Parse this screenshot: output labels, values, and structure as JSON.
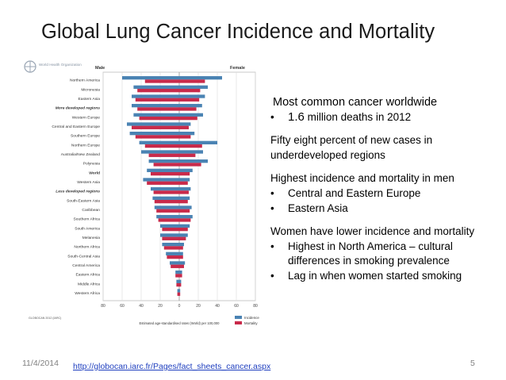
{
  "slide": {
    "title": "Global Lung Cancer Incidence and Mortality",
    "date": "11/4/2014",
    "link": "http://globocan.iarc.fr/Pages/fact_sheets_cancer.aspx",
    "page": "5"
  },
  "panel": {
    "heading": "Most common cancer worldwide",
    "b1_num": "1.6",
    "b1_rest": " million deaths in 2012",
    "p2": "Fifty eight percent of new cases in underdeveloped regions",
    "p3_head": "Highest incidence and mortality in men",
    "p3_b1": "Central and Eastern Europe",
    "p3_b2": "Eastern Asia",
    "p4_head": "Women have lower incidence and mortality",
    "p4_b1": "Highest in North America – cultural differences in smoking prevalence",
    "p4_b2": "Lag in when women started smoking",
    "bullet": "•"
  },
  "colors": {
    "incidence": "#4a83b3",
    "mortality": "#c92a4a",
    "title": "#1a1a1a"
  },
  "chart_data": {
    "type": "bar",
    "orientation": "horizontal-butterfly",
    "logo_text": "World Health Organization",
    "left_label": "Male",
    "right_label": "Female",
    "xlabel": "Estimated age-standardised rates (World) per 100,000",
    "credit": "GLOBOCAN 2012 (IARC)",
    "xlim": [
      -80,
      80
    ],
    "xticks": [
      -80,
      -60,
      -40,
      -20,
      0,
      20,
      40,
      60,
      80
    ],
    "xtick_labels": [
      "80",
      "60",
      "40",
      "20",
      "0",
      "20",
      "40",
      "60",
      "80"
    ],
    "legend": [
      "Incidence",
      "Mortality"
    ],
    "legend_position": "bottom-right",
    "categories": [
      "Northern America",
      "Micronesia",
      "Eastern Asia",
      "More developed regions",
      "Western Europe",
      "Central and Eastern Europe",
      "Southern Europe",
      "Northern Europe",
      "Australia/New Zealand",
      "Polynesia",
      "World",
      "Western Asia",
      "Less developed regions",
      "South-Eastern Asia",
      "Caribbean",
      "Southern Africa",
      "South America",
      "Melanesia",
      "Northern Africa",
      "South-Central Asia",
      "Central America",
      "Eastern Africa",
      "Middle Africa",
      "Western Africa"
    ],
    "bold_categories": [
      "More developed regions",
      "World",
      "Less developed regions"
    ],
    "series": [
      {
        "name": "Incidence",
        "male": [
          -60,
          -48,
          -50,
          -50,
          -48,
          -55,
          -52,
          -42,
          -40,
          -32,
          -34,
          -38,
          -30,
          -28,
          -26,
          -24,
          -20,
          -20,
          -18,
          -14,
          -10,
          -4,
          -3,
          -2
        ],
        "female": [
          45,
          30,
          27,
          24,
          25,
          12,
          16,
          40,
          25,
          30,
          14,
          11,
          12,
          11,
          13,
          14,
          11,
          9,
          5,
          4,
          6,
          3,
          2,
          1
        ]
      },
      {
        "name": "Mortality",
        "male": [
          -36,
          -44,
          -46,
          -44,
          -42,
          -50,
          -46,
          -36,
          -32,
          -27,
          -30,
          -34,
          -27,
          -26,
          -24,
          -22,
          -18,
          -18,
          -16,
          -13,
          -9,
          -4,
          -3,
          -2
        ],
        "female": [
          27,
          22,
          21,
          18,
          19,
          10,
          12,
          24,
          17,
          23,
          11,
          9,
          10,
          9,
          11,
          12,
          9,
          7,
          4,
          4,
          5,
          3,
          2,
          1
        ]
      }
    ]
  }
}
